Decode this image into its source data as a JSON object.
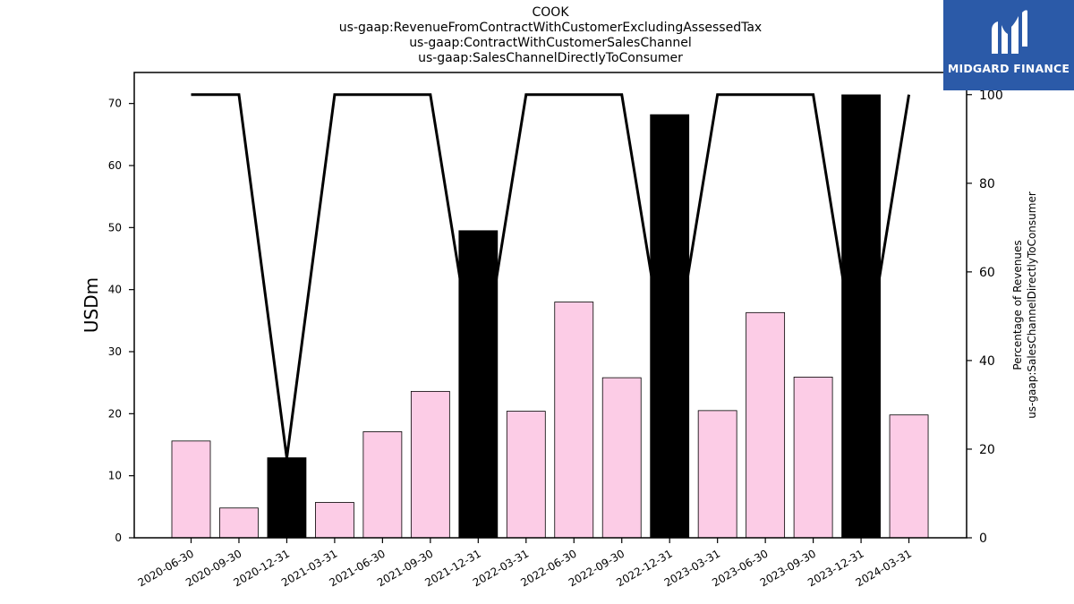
{
  "title_lines": [
    "COOK",
    "us-gaap:RevenueFromContractWithCustomerExcludingAssessedTax",
    "us-gaap:ContractWithCustomerSalesChannel",
    "us-gaap:SalesChannelDirectlyToConsumer"
  ],
  "logo": {
    "text": "MIDGARD FINANCE",
    "icon": "midgard-logo-icon"
  },
  "chart_data": {
    "type": "bar",
    "categories": [
      "2020-06-30",
      "2020-09-30",
      "2020-12-31",
      "2021-03-31",
      "2021-06-30",
      "2021-09-30",
      "2021-12-31",
      "2022-03-31",
      "2022-06-30",
      "2022-09-30",
      "2022-12-31",
      "2023-03-31",
      "2023-06-30",
      "2023-09-30",
      "2023-12-31",
      "2024-03-31"
    ],
    "values": [
      15.6,
      4.8,
      12.9,
      5.7,
      17.1,
      23.6,
      49.5,
      20.4,
      38.0,
      25.8,
      68.2,
      20.5,
      36.3,
      25.9,
      71.4,
      19.8
    ],
    "bar_colors": [
      "#fccce6",
      "#fccce6",
      "#000000",
      "#fccce6",
      "#fccce6",
      "#fccce6",
      "#000000",
      "#fccce6",
      "#fccce6",
      "#fccce6",
      "#000000",
      "#fccce6",
      "#fccce6",
      "#fccce6",
      "#000000",
      "#fccce6"
    ],
    "line": {
      "values": [
        100,
        100,
        18,
        100,
        100,
        100,
        33,
        100,
        100,
        100,
        34,
        100,
        100,
        100,
        33,
        100
      ],
      "color": "#000000"
    },
    "ylabel": "USDm",
    "ylabel_right": [
      "Percentage of Revenues",
      "us-gaap:SalesChannelDirectlyToConsumer"
    ],
    "ylim": [
      0,
      75
    ],
    "yticks": [
      0,
      10,
      20,
      30,
      40,
      50,
      60,
      70
    ],
    "ylim_right": [
      0,
      105
    ],
    "yticks_right": [
      0,
      20,
      40,
      60,
      80,
      100
    ],
    "grid": false,
    "legend": "none"
  }
}
